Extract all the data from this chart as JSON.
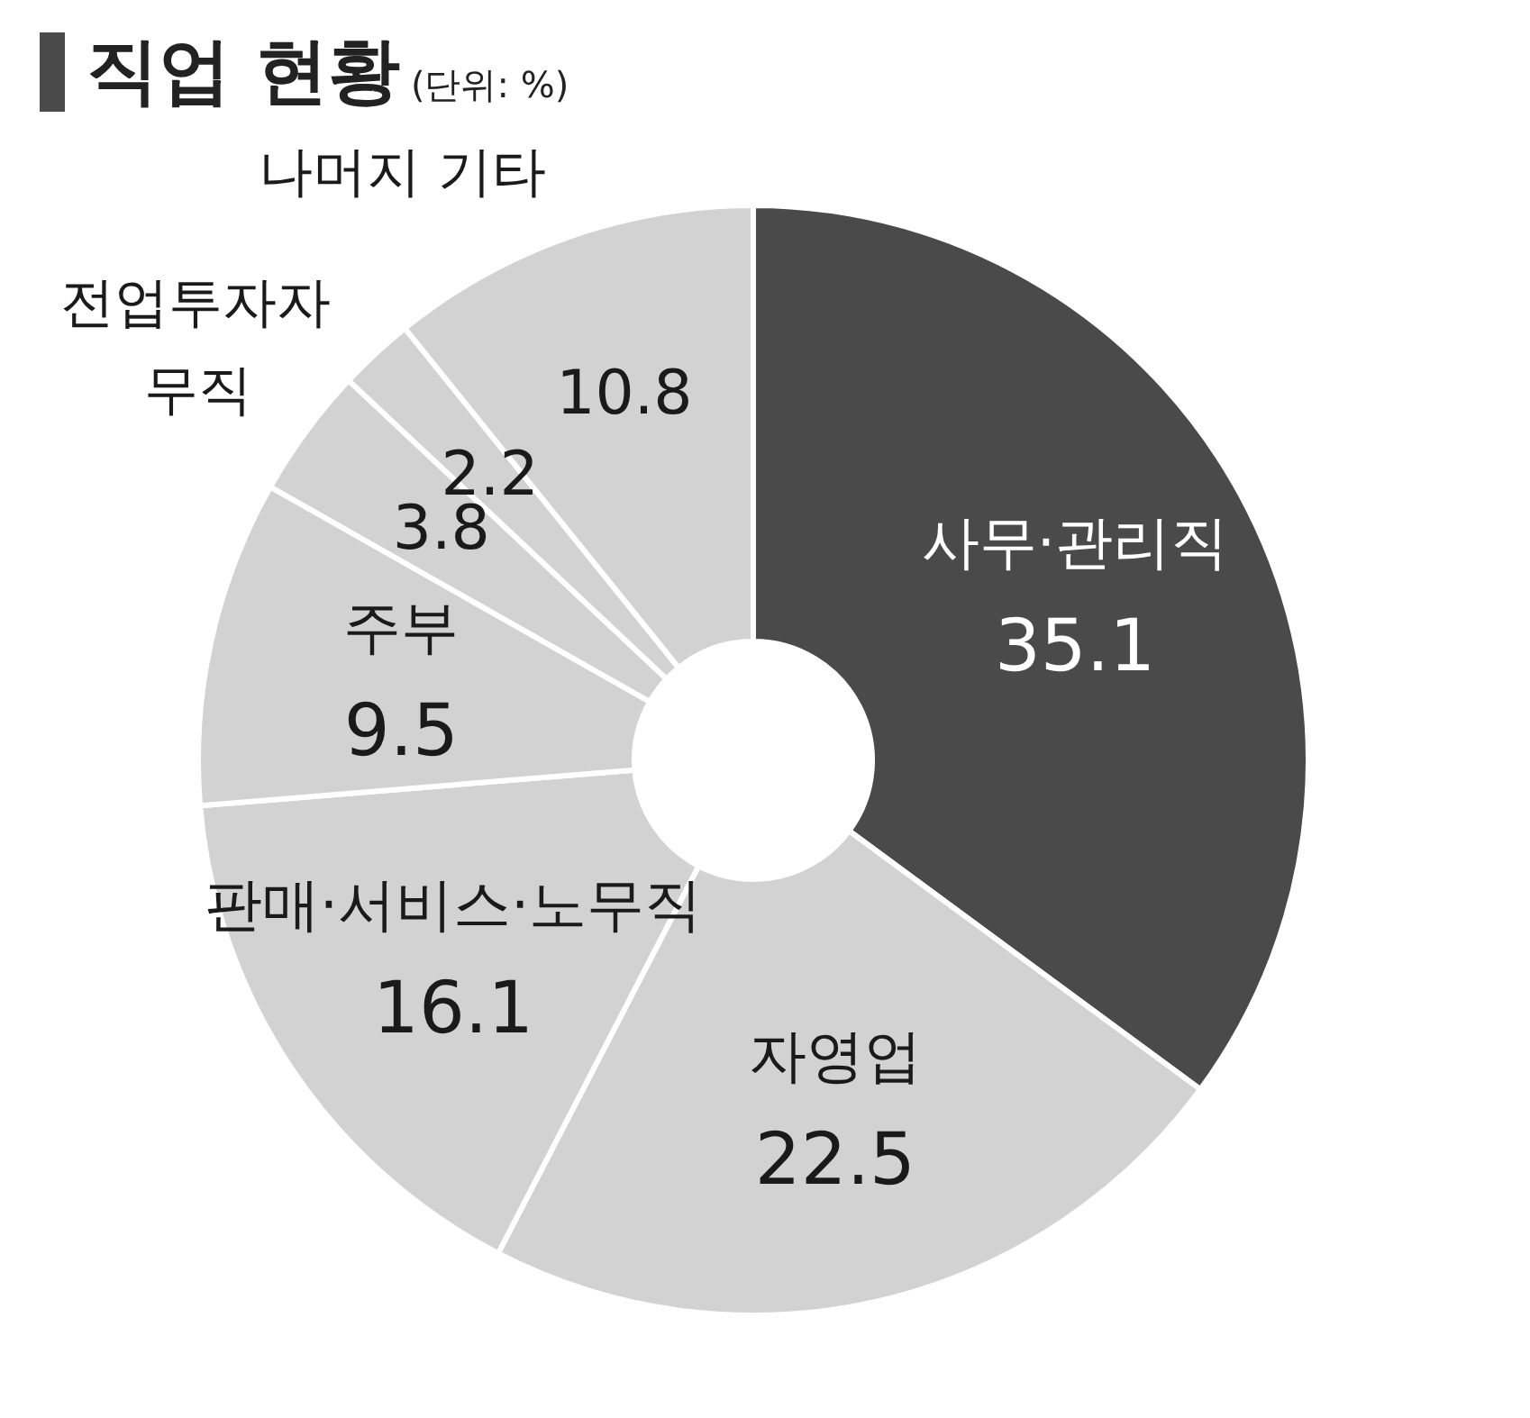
{
  "chart_data": {
    "type": "donut",
    "title": "직업 현황",
    "subtitle": "(단위: %)",
    "categories": [
      "사무·관리직",
      "자영업",
      "판매·서비스·노무직",
      "주부",
      "무직",
      "전업투자자",
      "나머지 기타"
    ],
    "values": [
      35.1,
      22.5,
      16.1,
      9.5,
      3.8,
      2.2,
      10.8
    ],
    "colors": [
      "#4a4a4a",
      "#d2d2d2",
      "#d2d2d2",
      "#d2d2d2",
      "#d2d2d2",
      "#d2d2d2",
      "#d2d2d2"
    ],
    "data_labels": true
  }
}
